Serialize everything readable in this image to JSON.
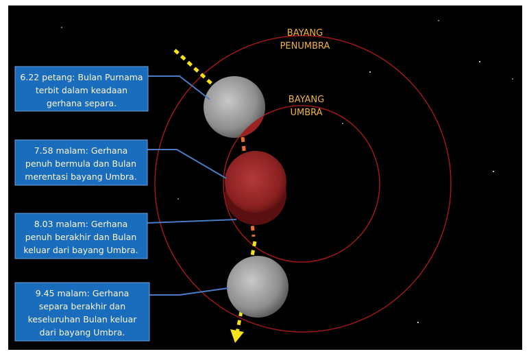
{
  "labels": {
    "penumbra": [
      "BAYANG",
      "PENUMBRA"
    ],
    "umbra": [
      "BAYANG",
      "UMBRA"
    ]
  },
  "boxes": [
    {
      "lines": [
        "6.22 petang: Bulan Purnama",
        "terbit dalam keadaan",
        "gerhana separa."
      ]
    },
    {
      "lines": [
        "7.58 malam: Gerhana",
        "penuh bermula dan Bulan",
        "merentasi bayang Umbra."
      ]
    },
    {
      "lines": [
        "8.03 malam: Gerhana",
        "penuh berakhir dan Bulan",
        "keluar dari bayang Umbra."
      ]
    },
    {
      "lines": [
        "9.45 malam: Gerhana",
        "separa berakhir dan",
        "keseluruhan Bulan keluar",
        "dari bayang Umbra."
      ]
    }
  ]
}
